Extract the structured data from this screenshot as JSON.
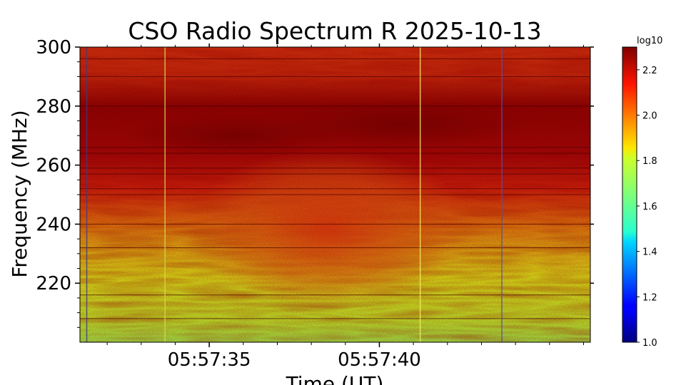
{
  "chart_data": {
    "type": "heatmap",
    "title": "CSO Radio Spectrum R 2025-10-13",
    "xlabel": "Time (UT)",
    "ylabel": "Frequency (MHz)",
    "x_ticks": [
      "05:57:35",
      "05:57:40"
    ],
    "x_range": [
      "05:57:31.2",
      "05:57:46.2"
    ],
    "y_ticks": [
      220,
      240,
      260,
      280,
      300
    ],
    "ylim": [
      200,
      300
    ],
    "colorbar": {
      "label": "log10",
      "range": [
        1.0,
        2.3
      ],
      "ticks": [
        "1.0",
        "1.2",
        "1.4",
        "1.6",
        "1.8",
        "2.0",
        "2.2"
      ],
      "colormap": "jet"
    },
    "features": {
      "bright_bands_mhz": [
        [
          250,
          290
        ]
      ],
      "vertical_lines_time": [
        "05:57:31.4",
        "05:57:33.7",
        "05:57:41.2",
        "05:57:43.6"
      ],
      "horizontal_lines_mhz": [
        208,
        216,
        232,
        240,
        250,
        252,
        257,
        259,
        264,
        266,
        280,
        290,
        296
      ]
    }
  }
}
